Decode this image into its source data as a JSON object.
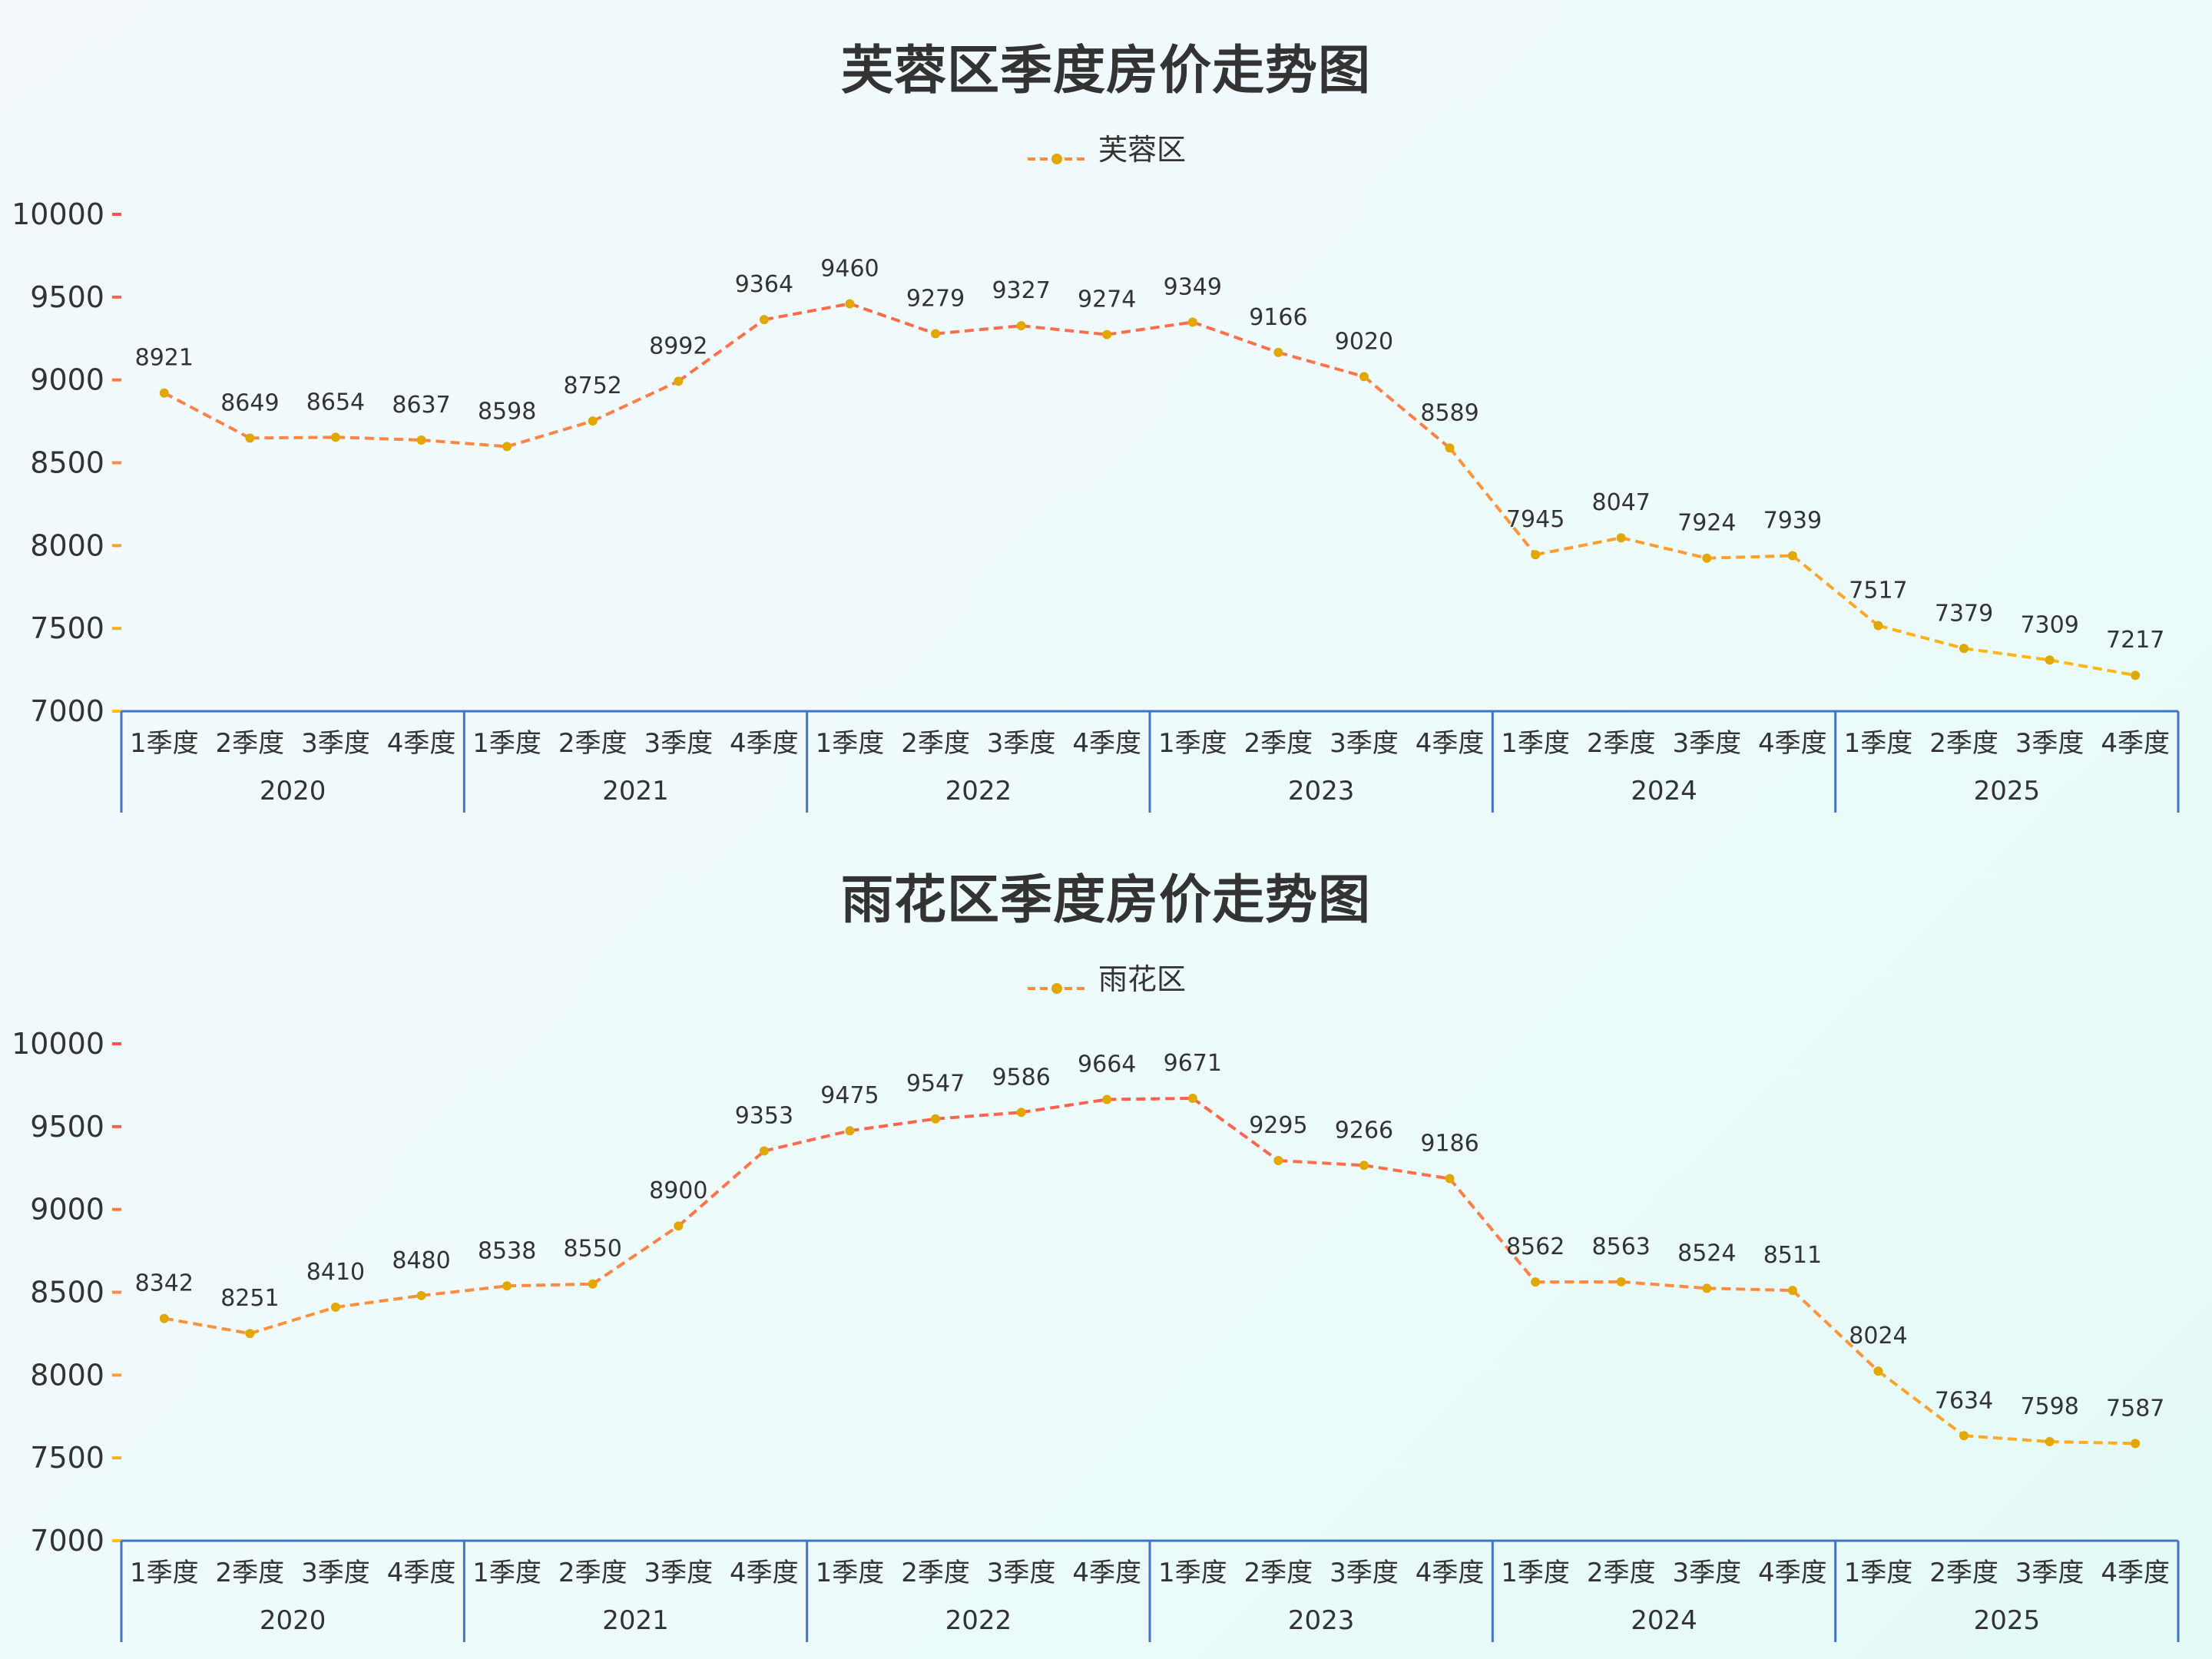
{
  "colors": {
    "line_high": "#ff5252",
    "line_mid": "#ff8c42",
    "line_low": "#ffc107",
    "point": "#e0a800",
    "axis_x": "#4472c4",
    "text": "#333333"
  },
  "chart_data": [
    {
      "type": "line",
      "title": "芙蓉区季度房价走势图",
      "legend": [
        "芙蓉区"
      ],
      "xlabel": "",
      "ylabel": "",
      "ylim": [
        7000,
        10000
      ],
      "yticks": [
        7000,
        7500,
        8000,
        8500,
        9000,
        9500,
        10000
      ],
      "grid": false,
      "legend_position": "top",
      "x_groups": [
        "2020",
        "2021",
        "2022",
        "2023",
        "2024",
        "2025"
      ],
      "x_subcategories": [
        "1季度",
        "2季度",
        "3季度",
        "4季度"
      ],
      "categories": [
        "2020-1季度",
        "2020-2季度",
        "2020-3季度",
        "2020-4季度",
        "2021-1季度",
        "2021-2季度",
        "2021-3季度",
        "2021-4季度",
        "2022-1季度",
        "2022-2季度",
        "2022-3季度",
        "2022-4季度",
        "2023-1季度",
        "2023-2季度",
        "2023-3季度",
        "2023-4季度",
        "2024-1季度",
        "2024-2季度",
        "2024-3季度",
        "2024-4季度",
        "2025-1季度",
        "2025-2季度",
        "2025-3季度",
        "2025-4季度"
      ],
      "series": [
        {
          "name": "芙蓉区",
          "values": [
            8921,
            8649,
            8654,
            8637,
            8598,
            8752,
            8992,
            9364,
            9460,
            9279,
            9327,
            9274,
            9349,
            9166,
            9020,
            8589,
            7945,
            8047,
            7924,
            7939,
            7517,
            7379,
            7309,
            7217
          ]
        }
      ]
    },
    {
      "type": "line",
      "title": "雨花区季度房价走势图",
      "legend": [
        "雨花区"
      ],
      "xlabel": "",
      "ylabel": "",
      "ylim": [
        7000,
        10000
      ],
      "yticks": [
        7000,
        7500,
        8000,
        8500,
        9000,
        9500,
        10000
      ],
      "grid": false,
      "legend_position": "top",
      "x_groups": [
        "2020",
        "2021",
        "2022",
        "2023",
        "2024",
        "2025"
      ],
      "x_subcategories": [
        "1季度",
        "2季度",
        "3季度",
        "4季度"
      ],
      "categories": [
        "2020-1季度",
        "2020-2季度",
        "2020-3季度",
        "2020-4季度",
        "2021-1季度",
        "2021-2季度",
        "2021-3季度",
        "2021-4季度",
        "2022-1季度",
        "2022-2季度",
        "2022-3季度",
        "2022-4季度",
        "2023-1季度",
        "2023-2季度",
        "2023-3季度",
        "2023-4季度",
        "2024-1季度",
        "2024-2季度",
        "2024-3季度",
        "2024-4季度",
        "2025-1季度",
        "2025-2季度",
        "2025-3季度",
        "2025-4季度"
      ],
      "series": [
        {
          "name": "雨花区",
          "values": [
            8342,
            8251,
            8410,
            8480,
            8538,
            8550,
            8900,
            9353,
            9475,
            9547,
            9586,
            9664,
            9671,
            9295,
            9266,
            9186,
            8562,
            8563,
            8524,
            8511,
            8024,
            7634,
            7598,
            7587
          ]
        }
      ]
    }
  ]
}
